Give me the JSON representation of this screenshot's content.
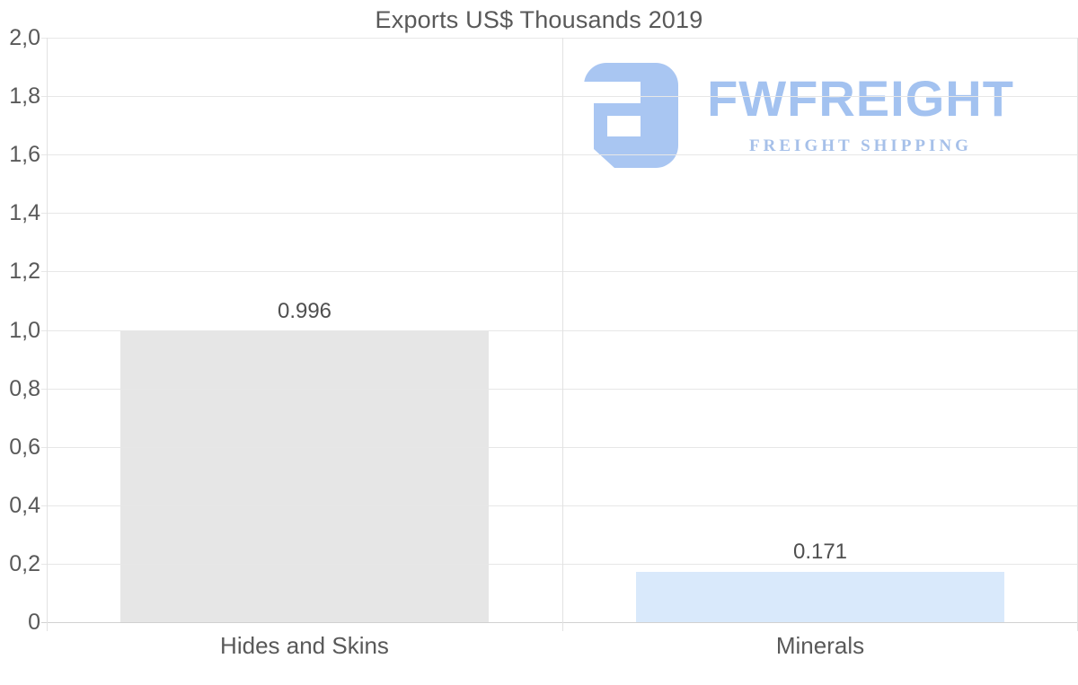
{
  "chart_data": {
    "type": "bar",
    "title": "Exports US$ Thousands 2019",
    "categories": [
      "Hides and Skins",
      "Minerals"
    ],
    "values": [
      0.996,
      0.171
    ],
    "data_labels": [
      "0.996",
      "0.171"
    ],
    "bar_colors": [
      "#e6e6e6",
      "#d9e9fb"
    ],
    "xlabel": "",
    "ylabel": "",
    "ylim": [
      0,
      2
    ],
    "ytick_step": 0.2,
    "ytick_labels": [
      "2,0",
      "1,8",
      "1,6",
      "1,4",
      "1,2",
      "1,0",
      "0,8",
      "0,6",
      "0,4",
      "0,2",
      "0"
    ],
    "decimal_separator_axis": ",",
    "grid": true,
    "legend_position": "none"
  },
  "logo": {
    "brand": "FWFREIGHT",
    "tagline": "FREIGHT SHIPPING",
    "brand_color": "#a3c2f0",
    "tagline_color": "#a6c0e9",
    "icon_color": "#a9c6f2",
    "icon_name": "fwfreight-logo-icon"
  },
  "colors": {
    "background": "#ffffff",
    "title_text": "#595959",
    "axis_text": "#595959",
    "value_text": "#4f4f4f",
    "gridline": "#e7e7e7",
    "baseline": "#d1d1d1",
    "bar_hides_and_skins": "#e6e6e6",
    "bar_minerals": "#d9e9fb"
  }
}
